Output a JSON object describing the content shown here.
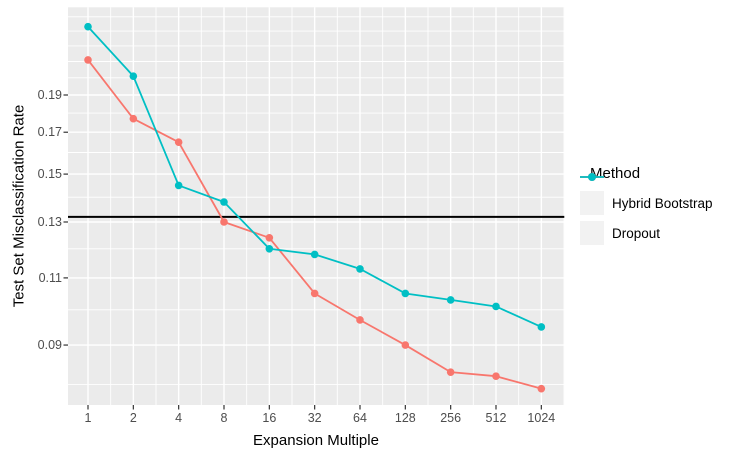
{
  "figure": {
    "background": "#FFFFFF",
    "panel_background": "#EBEBEB",
    "grid_color": "#FFFFFF",
    "tick_mark_color": "#333333",
    "axis_text_color": "#4D4D4D",
    "title_color": "#000000",
    "legend_key_background": "#F2F2F2"
  },
  "chart_data": {
    "type": "line",
    "title": "",
    "xlabel": "Expansion Multiple",
    "ylabel": "Test Set Misclassification Rate",
    "x_scale": "log2",
    "y_scale": "log10",
    "grid": true,
    "categories": [
      1,
      2,
      4,
      8,
      16,
      32,
      64,
      128,
      256,
      512,
      1024
    ],
    "x_tick_labels": [
      "1",
      "2",
      "4",
      "8",
      "16",
      "32",
      "64",
      "128",
      "256",
      "512",
      "1024"
    ],
    "y_ticks": [
      0.09,
      0.11,
      0.13,
      0.15,
      0.17,
      0.19
    ],
    "y_tick_labels": [
      "0.09",
      "0.11",
      "0.13",
      "0.15",
      "0.17",
      "0.19"
    ],
    "ylim": [
      0.075,
      0.247
    ],
    "minor_grid_y_step": 0.01,
    "minor_grid_y_range": [
      0.08,
      0.24
    ],
    "reference_line": {
      "value": 0.132,
      "color": "#000000"
    },
    "series": [
      {
        "name": "Hybrid Bootstrap",
        "color": "#F8766D",
        "values": [
          0.211,
          0.177,
          0.165,
          0.13,
          0.124,
          0.105,
          0.097,
          0.09,
          0.083,
          0.082,
          0.079
        ]
      },
      {
        "name": "Dropout",
        "color": "#00BFC4",
        "values": [
          0.233,
          0.201,
          0.145,
          0.138,
          0.12,
          0.118,
          0.113,
          0.105,
          0.103,
          0.101,
          0.095
        ]
      }
    ],
    "legend": {
      "title": "Method",
      "position": "right"
    }
  }
}
